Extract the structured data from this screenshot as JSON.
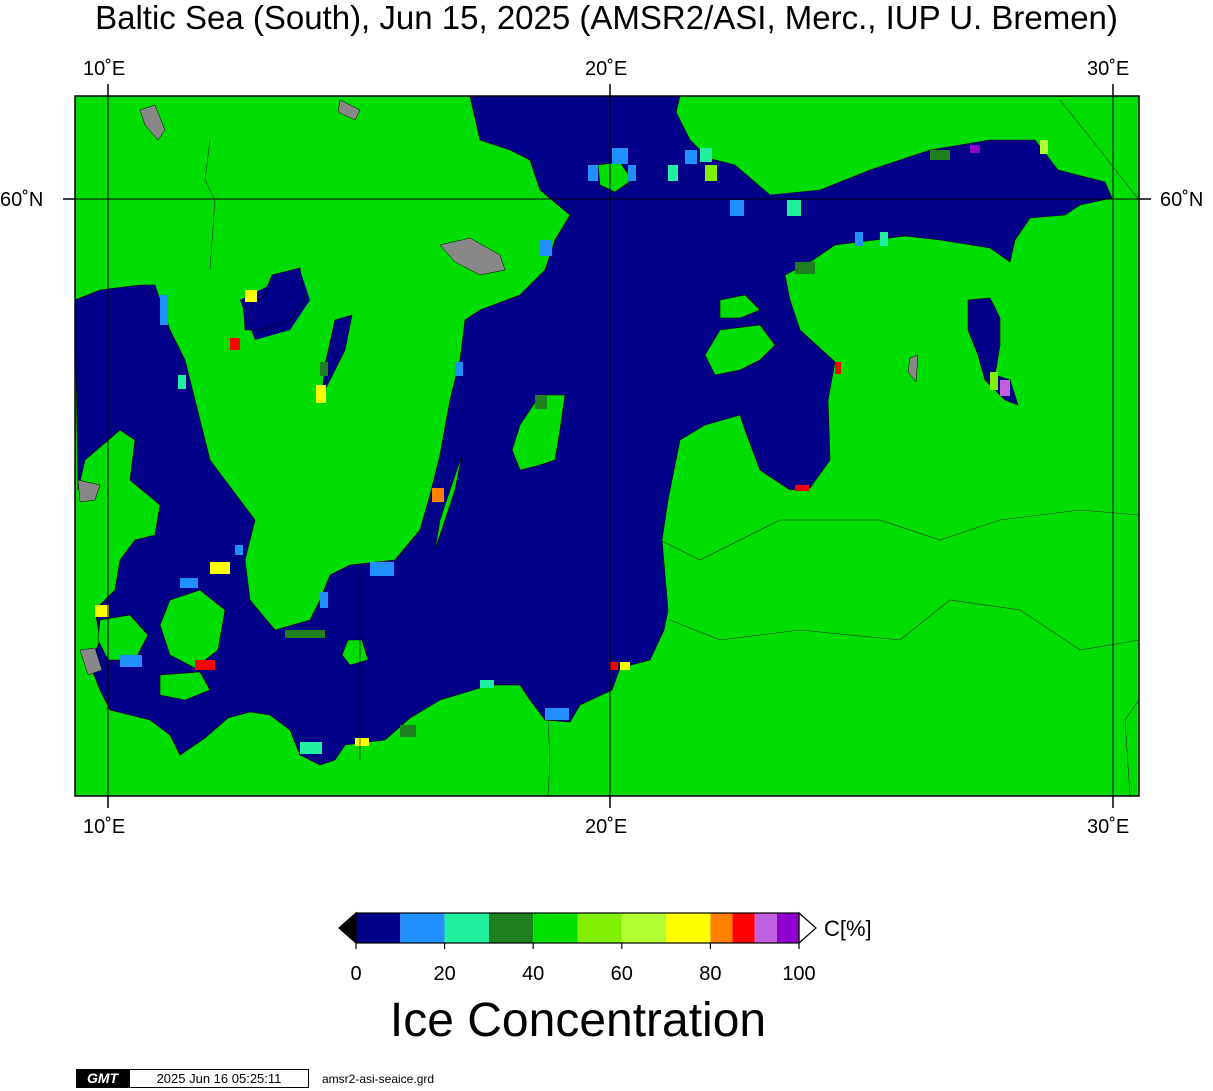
{
  "title": "Baltic Sea (South), Jun 15, 2025 (AMSR2/ASI, Merc., IUP U. Bremen)",
  "map": {
    "lon_ticks": [
      "10˚E",
      "20˚E",
      "30˚E"
    ],
    "lat_ticks": [
      "60˚N"
    ],
    "colors": {
      "open_water": "#000088",
      "land": "#00dd00",
      "no_data": "#888888",
      "graticule": "#000000"
    }
  },
  "colorbar": {
    "title": "Ice Concentration",
    "unit": "C[%]",
    "tick_labels": [
      "0",
      "20",
      "40",
      "60",
      "80",
      "100"
    ],
    "range": [
      0,
      100
    ],
    "classes": [
      {
        "from": 0,
        "to": 10,
        "color": "#000088"
      },
      {
        "from": 10,
        "to": 20,
        "color": "#2090ff"
      },
      {
        "from": 20,
        "to": 30,
        "color": "#20f0a0"
      },
      {
        "from": 30,
        "to": 40,
        "color": "#208020"
      },
      {
        "from": 40,
        "to": 50,
        "color": "#00e000"
      },
      {
        "from": 50,
        "to": 60,
        "color": "#80f000"
      },
      {
        "from": 60,
        "to": 70,
        "color": "#b0ff30"
      },
      {
        "from": 70,
        "to": 80,
        "color": "#ffff00"
      },
      {
        "from": 80,
        "to": 85,
        "color": "#ff8000"
      },
      {
        "from": 85,
        "to": 90,
        "color": "#ff0000"
      },
      {
        "from": 90,
        "to": 95,
        "color": "#c060e0"
      },
      {
        "from": 95,
        "to": 100,
        "color": "#9000d0"
      }
    ]
  },
  "footer": {
    "logo": "GMT",
    "timestamp": "2025 Jun 16 05:25:11",
    "filename": "amsr2-asi-seaice.grd"
  }
}
